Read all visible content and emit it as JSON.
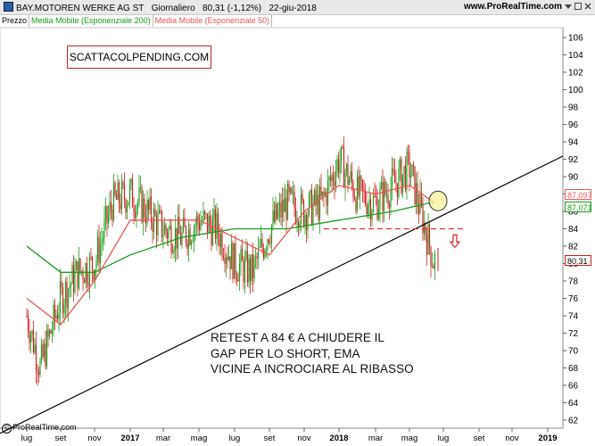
{
  "header": {
    "instrument": "BAY.MOTOREN WERKE AG ST",
    "period": "Giornaliero",
    "last": "80,31 (-1,12%)",
    "date": "22-giu-2018",
    "site": "www.ProRealTime.com"
  },
  "legend": {
    "price_label": "Prezzo",
    "ema200_label": "Media Mobile (Esponenziale 200)",
    "ema50_label": "Media Mobile (Esponenziale 50)"
  },
  "annotations": {
    "stamp": "SCATTACOLPENDING.COM",
    "comment": "RETEST A 84 € A CHIUDERE IL\nGAP PER LO SHORT, EMA\nVICINE A INCROCIARE AL RIBASSO"
  },
  "footer": {
    "copyright": "ProRealTime.com",
    "copyright_symbol": "©"
  },
  "price_tags": [
    {
      "value": "87,097",
      "color": "#e06060"
    },
    {
      "value": "87,071",
      "color": "#1a9a1a"
    },
    {
      "value": "80,31",
      "color": "#cc2222"
    }
  ],
  "colors": {
    "candle": "#1ea01e",
    "candle_down": "#cc2222",
    "ema50": "#ee5555",
    "ema200": "#1a9a1a",
    "trendline": "#000000",
    "support": "#dd3333",
    "highlight": "#f7f2a0"
  },
  "chart_data": {
    "type": "candlestick",
    "x": [
      "lug",
      "set",
      "nov",
      "2017",
      "mar",
      "mag",
      "lug",
      "set",
      "nov",
      "2018",
      "mar",
      "mag",
      "lug",
      "set",
      "nov",
      "2019"
    ],
    "y_ticks": [
      62,
      64,
      66,
      68,
      70,
      72,
      74,
      76,
      78,
      80,
      82,
      84,
      86,
      88,
      90,
      92,
      94,
      96,
      98,
      100,
      102,
      104,
      106
    ],
    "ylim": [
      61,
      107
    ],
    "close_series_approx": [
      [
        "2016-07",
        74
      ],
      [
        "2016-08",
        68
      ],
      [
        "2016-09",
        76
      ],
      [
        "2016-10",
        79
      ],
      [
        "2016-11",
        80
      ],
      [
        "2016-12",
        87
      ],
      [
        "2017-01",
        88
      ],
      [
        "2017-02",
        86
      ],
      [
        "2017-03",
        84
      ],
      [
        "2017-04",
        83
      ],
      [
        "2017-05",
        85
      ],
      [
        "2017-06",
        84
      ],
      [
        "2017-07",
        80
      ],
      [
        "2017-08",
        79
      ],
      [
        "2017-09",
        84
      ],
      [
        "2017-10",
        87
      ],
      [
        "2017-11",
        86
      ],
      [
        "2017-12",
        87
      ],
      [
        "2018-01",
        92
      ],
      [
        "2018-02",
        88
      ],
      [
        "2018-03",
        87
      ],
      [
        "2018-04",
        89
      ],
      [
        "2018-05",
        91
      ],
      [
        "2018-06",
        80.31
      ]
    ],
    "ema50": [
      [
        "2016-07",
        76
      ],
      [
        "2016-09",
        73
      ],
      [
        "2016-11",
        78
      ],
      [
        "2017-01",
        85
      ],
      [
        "2017-03",
        85
      ],
      [
        "2017-05",
        85
      ],
      [
        "2017-07",
        83
      ],
      [
        "2017-09",
        81
      ],
      [
        "2017-11",
        86
      ],
      [
        "2018-01",
        89
      ],
      [
        "2018-03",
        88
      ],
      [
        "2018-05",
        89
      ],
      [
        "2018-06",
        87.097
      ]
    ],
    "ema200": [
      [
        "2016-07",
        82
      ],
      [
        "2016-09",
        79
      ],
      [
        "2016-11",
        79
      ],
      [
        "2017-01",
        81
      ],
      [
        "2017-04",
        83
      ],
      [
        "2017-07",
        84
      ],
      [
        "2017-10",
        84
      ],
      [
        "2018-01",
        85
      ],
      [
        "2018-04",
        86
      ],
      [
        "2018-06",
        87.071
      ]
    ],
    "trendline": {
      "from": [
        "2016-07",
        62
      ],
      "to": [
        "2019-01",
        91.5
      ]
    },
    "support_level": 84,
    "last_price": 80.31
  }
}
